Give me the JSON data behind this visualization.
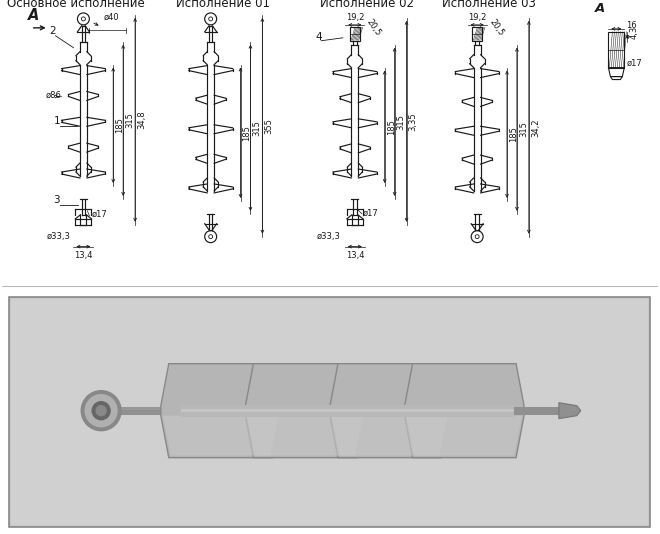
{
  "title_main": "Основное исполнение",
  "title_01": "Исполнение 01",
  "title_02": "Исполнение 02",
  "title_03": "Исполнение 03",
  "bg_color": "#ffffff",
  "line_color": "#1a1a1a",
  "dim_color": "#1a1a1a",
  "dim_fontsize": 6.0,
  "label_fontsize": 7.5,
  "title_fontsize": 8.5,
  "photo_bg": "#c8c8c8",
  "photo_inner": "#d5d5d5"
}
